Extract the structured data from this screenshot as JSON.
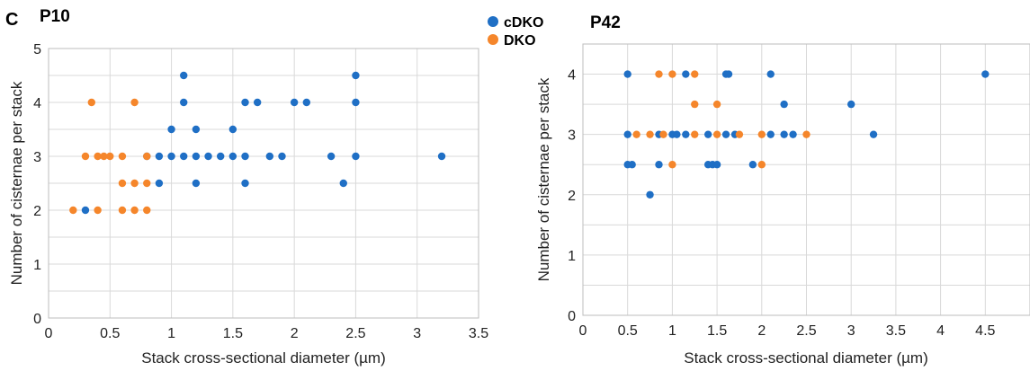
{
  "panel_letter": "C",
  "legend": {
    "entries": [
      {
        "label": "cDKO",
        "color": "#1f6fc5"
      },
      {
        "label": "DKO",
        "color": "#f5862b"
      }
    ]
  },
  "chart_data": [
    {
      "type": "scatter",
      "title": "P10",
      "xlabel": "Stack cross-sectional diameter (µm)",
      "ylabel": "Number of cisternae per stack",
      "xlim": [
        0,
        3.5
      ],
      "ylim": [
        0,
        5
      ],
      "xticks": [
        "0",
        "0.5",
        "1",
        "1.5",
        "2",
        "2.5",
        "3",
        "3.5"
      ],
      "yticks": [
        "0",
        "1",
        "2",
        "3",
        "4",
        "5"
      ],
      "grid": true,
      "series": [
        {
          "name": "cDKO",
          "color": "#1f6fc5",
          "points": [
            [
              0.3,
              2
            ],
            [
              0.9,
              2.5
            ],
            [
              1.2,
              2.5
            ],
            [
              1.6,
              2.5
            ],
            [
              2.4,
              2.5
            ],
            [
              0.8,
              3
            ],
            [
              0.9,
              3
            ],
            [
              1.0,
              3
            ],
            [
              1.1,
              3
            ],
            [
              1.2,
              3
            ],
            [
              1.3,
              3
            ],
            [
              1.4,
              3
            ],
            [
              1.5,
              3
            ],
            [
              1.6,
              3
            ],
            [
              1.8,
              3
            ],
            [
              1.9,
              3
            ],
            [
              2.3,
              3
            ],
            [
              2.5,
              3
            ],
            [
              3.2,
              3
            ],
            [
              1.0,
              3.5
            ],
            [
              1.2,
              3.5
            ],
            [
              1.5,
              3.5
            ],
            [
              1.1,
              4
            ],
            [
              1.6,
              4
            ],
            [
              1.7,
              4
            ],
            [
              2.0,
              4
            ],
            [
              2.1,
              4
            ],
            [
              2.5,
              4
            ],
            [
              1.1,
              4.5
            ],
            [
              2.5,
              4.5
            ]
          ]
        },
        {
          "name": "DKO",
          "color": "#f5862b",
          "points": [
            [
              0.2,
              2
            ],
            [
              0.4,
              2
            ],
            [
              0.6,
              2
            ],
            [
              0.7,
              2
            ],
            [
              0.8,
              2
            ],
            [
              0.6,
              2.5
            ],
            [
              0.7,
              2.5
            ],
            [
              0.8,
              2.5
            ],
            [
              0.3,
              3
            ],
            [
              0.4,
              3
            ],
            [
              0.45,
              3
            ],
            [
              0.5,
              3
            ],
            [
              0.6,
              3
            ],
            [
              0.8,
              3
            ],
            [
              0.35,
              4
            ],
            [
              0.7,
              4
            ]
          ]
        }
      ]
    },
    {
      "type": "scatter",
      "title": "P42",
      "xlabel": "Stack cross-sectional diameter (µm)",
      "ylabel": "Number of cisternae per stack",
      "xlim": [
        0,
        5
      ],
      "ylim": [
        0,
        4.5
      ],
      "xticks": [
        "0",
        "0.5",
        "1",
        "1.5",
        "2",
        "2.5",
        "3",
        "3.5",
        "4",
        "4.5"
      ],
      "yticks": [
        "0",
        "1",
        "2",
        "3",
        "4"
      ],
      "grid": true,
      "series": [
        {
          "name": "cDKO",
          "color": "#1f6fc5",
          "points": [
            [
              0.75,
              2
            ],
            [
              0.5,
              2.5
            ],
            [
              0.55,
              2.5
            ],
            [
              0.85,
              2.5
            ],
            [
              1.4,
              2.5
            ],
            [
              1.45,
              2.5
            ],
            [
              1.5,
              2.5
            ],
            [
              1.9,
              2.5
            ],
            [
              0.5,
              3
            ],
            [
              0.85,
              3
            ],
            [
              1.0,
              3
            ],
            [
              1.05,
              3
            ],
            [
              1.15,
              3
            ],
            [
              1.4,
              3
            ],
            [
              1.6,
              3
            ],
            [
              1.7,
              3
            ],
            [
              2.1,
              3
            ],
            [
              2.25,
              3
            ],
            [
              2.35,
              3
            ],
            [
              3.25,
              3
            ],
            [
              2.25,
              3.5
            ],
            [
              3.0,
              3.5
            ],
            [
              0.5,
              4
            ],
            [
              1.15,
              4
            ],
            [
              1.6,
              4
            ],
            [
              1.63,
              4
            ],
            [
              2.1,
              4
            ],
            [
              4.5,
              4
            ]
          ]
        },
        {
          "name": "DKO",
          "color": "#f5862b",
          "points": [
            [
              1.0,
              2.5
            ],
            [
              2.0,
              2.5
            ],
            [
              0.6,
              3
            ],
            [
              0.75,
              3
            ],
            [
              0.9,
              3
            ],
            [
              1.25,
              3
            ],
            [
              1.5,
              3
            ],
            [
              1.75,
              3
            ],
            [
              2.0,
              3
            ],
            [
              2.5,
              3
            ],
            [
              1.25,
              3.5
            ],
            [
              1.5,
              3.5
            ],
            [
              0.85,
              4
            ],
            [
              1.0,
              4
            ],
            [
              1.25,
              4
            ]
          ]
        }
      ]
    }
  ]
}
